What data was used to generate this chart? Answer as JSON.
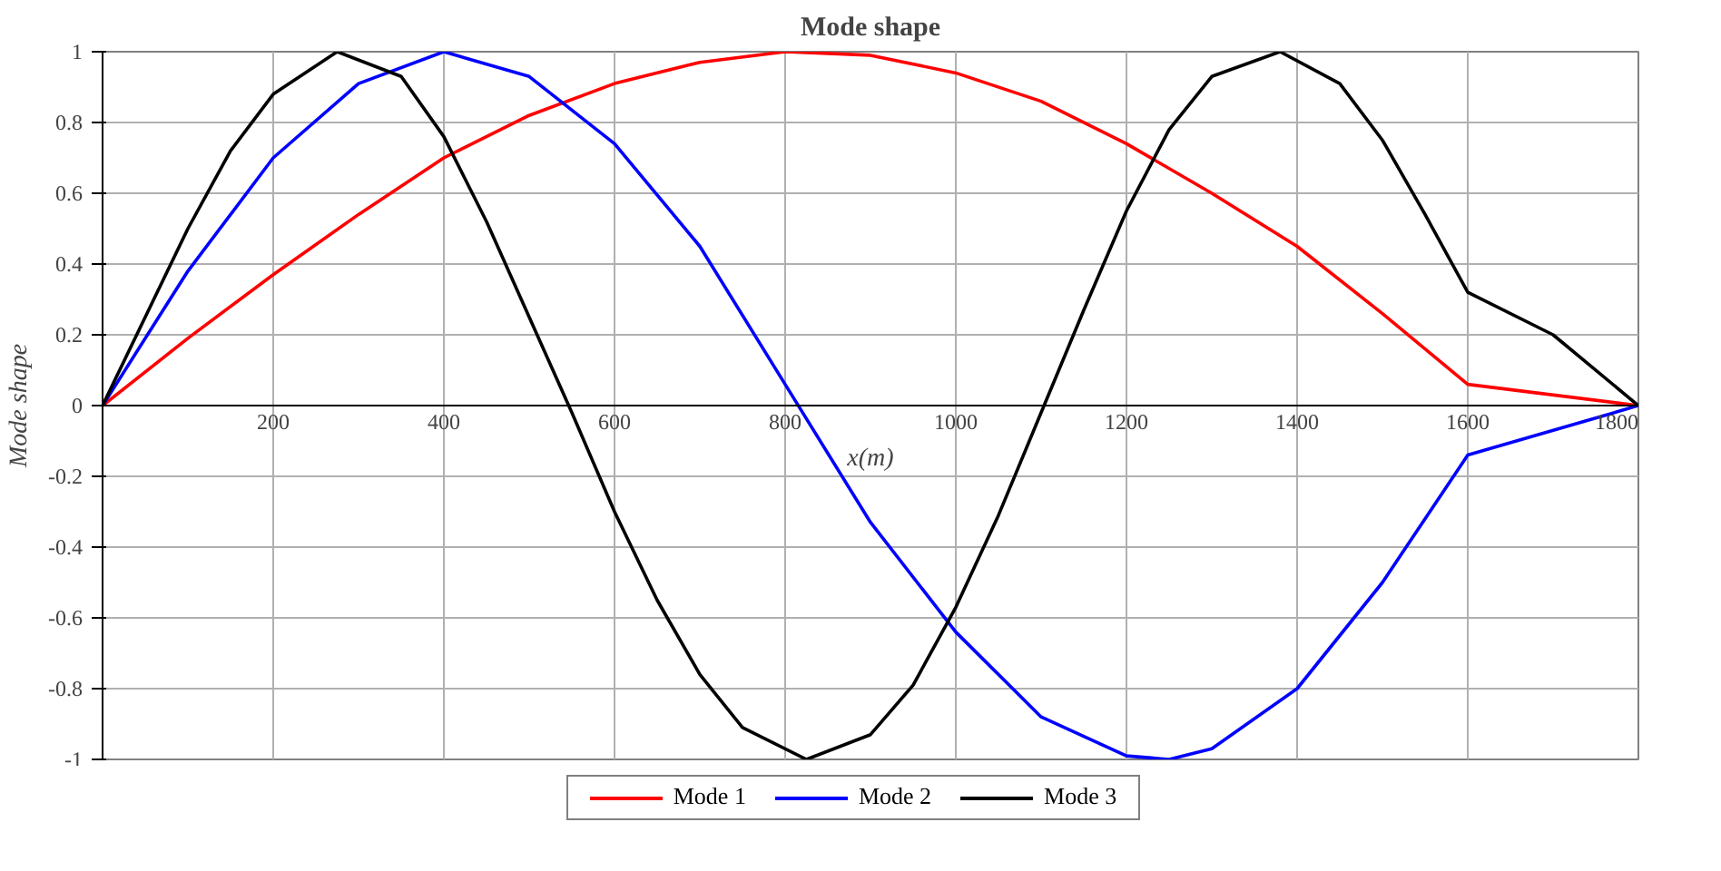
{
  "chart_data": {
    "type": "line",
    "title": "Mode shape",
    "xlabel": "x(m)",
    "ylabel": "Mode shape",
    "xlim": [
      0,
      1800
    ],
    "ylim": [
      -1,
      1
    ],
    "xticks": [
      200,
      400,
      600,
      800,
      1000,
      1200,
      1400,
      1600,
      1800
    ],
    "yticks": [
      -1,
      -0.8,
      -0.6,
      -0.4,
      -0.2,
      0,
      0.2,
      0.4,
      0.6,
      0.8,
      1
    ],
    "grid": true,
    "legend": "bottom",
    "marker": "none",
    "line_style": "solid",
    "series": [
      {
        "name": "Mode 1",
        "color": "#ff0000",
        "x": [
          0,
          100,
          200,
          300,
          400,
          500,
          600,
          700,
          800,
          900,
          1000,
          1100,
          1200,
          1300,
          1400,
          1500,
          1600,
          1800
        ],
        "values": [
          0,
          0.19,
          0.37,
          0.54,
          0.7,
          0.82,
          0.91,
          0.97,
          1.0,
          0.99,
          0.94,
          0.86,
          0.74,
          0.6,
          0.45,
          0.26,
          0.06,
          0
        ]
      },
      {
        "name": "Mode 2",
        "color": "#0000ff",
        "x": [
          0,
          100,
          200,
          300,
          400,
          500,
          600,
          700,
          800,
          900,
          1000,
          1100,
          1200,
          1250,
          1300,
          1400,
          1500,
          1600,
          1800
        ],
        "values": [
          0,
          0.38,
          0.7,
          0.91,
          1.0,
          0.93,
          0.74,
          0.45,
          0.06,
          -0.33,
          -0.64,
          -0.88,
          -0.99,
          -1.0,
          -0.97,
          -0.8,
          -0.5,
          -0.14,
          0
        ]
      },
      {
        "name": "Mode 3",
        "color": "#000000",
        "x": [
          0,
          50,
          100,
          150,
          200,
          275,
          350,
          400,
          450,
          500,
          550,
          600,
          650,
          700,
          750,
          825,
          900,
          950,
          1000,
          1050,
          1100,
          1150,
          1200,
          1250,
          1300,
          1380,
          1450,
          1500,
          1550,
          1600,
          1700,
          1800
        ],
        "values": [
          0,
          0.25,
          0.5,
          0.72,
          0.88,
          1.0,
          0.93,
          0.76,
          0.52,
          0.25,
          -0.02,
          -0.3,
          -0.55,
          -0.76,
          -0.91,
          -1.0,
          -0.93,
          -0.79,
          -0.57,
          -0.31,
          -0.02,
          0.27,
          0.55,
          0.78,
          0.93,
          1.0,
          0.91,
          0.75,
          0.54,
          0.32,
          0.2,
          0
        ]
      }
    ]
  }
}
